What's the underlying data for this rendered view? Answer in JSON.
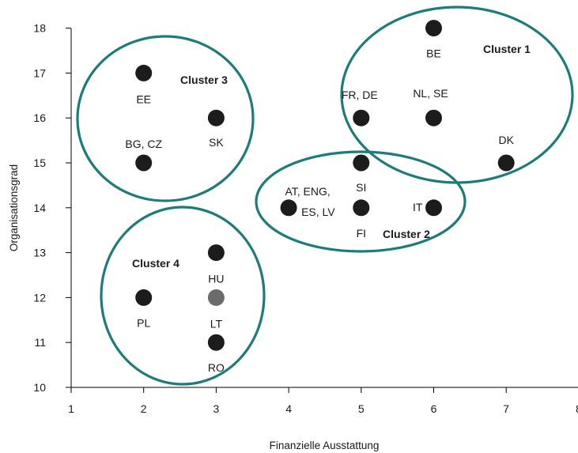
{
  "chart_data": {
    "type": "scatter",
    "title": "",
    "xlabel": "Finanzielle Ausstattung",
    "ylabel": "Organisationsgrad",
    "xlim": [
      1,
      8
    ],
    "ylim": [
      10,
      18
    ],
    "x_ticks": [
      "1",
      "2",
      "3",
      "4",
      "5",
      "6",
      "7",
      "8"
    ],
    "y_ticks": [
      "10",
      "11",
      "12",
      "13",
      "14",
      "15",
      "16",
      "17",
      "18"
    ],
    "grid": false,
    "colors": {
      "point": "#1c1c1c",
      "point_highlight": "#6b6b6b",
      "cluster": "#1e7b7b",
      "axis": "#000000"
    },
    "points": [
      {
        "x": 2,
        "y": 17,
        "label": "EE"
      },
      {
        "x": 2,
        "y": 15,
        "label": "BG, CZ"
      },
      {
        "x": 3,
        "y": 16,
        "label": "SK"
      },
      {
        "x": 2,
        "y": 12,
        "label": "PL"
      },
      {
        "x": 3,
        "y": 13,
        "label": "HU"
      },
      {
        "x": 3,
        "y": 12,
        "label": "LT",
        "highlight": true
      },
      {
        "x": 3,
        "y": 11,
        "label": "RO"
      },
      {
        "x": 4,
        "y": 14,
        "label": "AT, ENG, ES, LV"
      },
      {
        "x": 5,
        "y": 15,
        "label": "SI"
      },
      {
        "x": 5,
        "y": 14,
        "label": "FI"
      },
      {
        "x": 5,
        "y": 16,
        "label": "FR, DE"
      },
      {
        "x": 6,
        "y": 18,
        "label": "BE"
      },
      {
        "x": 6,
        "y": 16,
        "label": "NL, SE"
      },
      {
        "x": 6,
        "y": 14,
        "label": "IT"
      },
      {
        "x": 7,
        "y": 15,
        "label": "DK"
      }
    ],
    "clusters": [
      {
        "name": "Cluster 1",
        "members": [
          "FR, DE",
          "BE",
          "NL, SE",
          "DK",
          "SI"
        ]
      },
      {
        "name": "Cluster 2",
        "members": [
          "AT, ENG, ES, LV",
          "SI",
          "FI",
          "IT"
        ]
      },
      {
        "name": "Cluster 3",
        "members": [
          "EE",
          "BG, CZ",
          "SK"
        ]
      },
      {
        "name": "Cluster 4",
        "members": [
          "PL",
          "HU",
          "LT",
          "RO"
        ]
      }
    ]
  }
}
